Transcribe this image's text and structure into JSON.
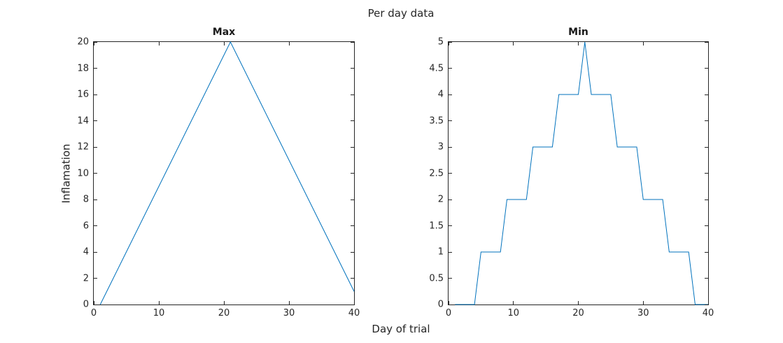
{
  "figure": {
    "suptitle": "Per day data",
    "xlabel": "Day of trial"
  },
  "colors": {
    "line": "#0072BD",
    "axis": "#262626",
    "text": "#262626"
  },
  "chart_data": [
    {
      "type": "line",
      "title": "Max",
      "ylabel": "Inflamation",
      "xlabel": "",
      "legend": null,
      "grid": false,
      "xlim": [
        0,
        40
      ],
      "ylim": [
        0,
        20
      ],
      "xticks": [
        0,
        10,
        20,
        30,
        40
      ],
      "yticks": [
        0,
        2,
        4,
        6,
        8,
        10,
        12,
        14,
        16,
        18,
        20
      ],
      "x": [
        1,
        2,
        3,
        4,
        5,
        6,
        7,
        8,
        9,
        10,
        11,
        12,
        13,
        14,
        15,
        16,
        17,
        18,
        19,
        20,
        21,
        22,
        23,
        24,
        25,
        26,
        27,
        28,
        29,
        30,
        31,
        32,
        33,
        34,
        35,
        36,
        37,
        38,
        39,
        40
      ],
      "y": [
        0,
        1,
        2,
        3,
        4,
        5,
        6,
        7,
        8,
        9,
        10,
        11,
        12,
        13,
        14,
        15,
        16,
        17,
        18,
        19,
        20,
        19,
        18,
        17,
        16,
        15,
        14,
        13,
        12,
        11,
        10,
        9,
        8,
        7,
        6,
        5,
        4,
        3,
        2,
        1
      ]
    },
    {
      "type": "line",
      "title": "Min",
      "ylabel": "",
      "xlabel": "",
      "legend": null,
      "grid": false,
      "xlim": [
        0,
        40
      ],
      "ylim": [
        0,
        5
      ],
      "xticks": [
        0,
        10,
        20,
        30,
        40
      ],
      "yticks": [
        0,
        0.5,
        1,
        1.5,
        2,
        2.5,
        3,
        3.5,
        4,
        4.5,
        5
      ],
      "x": [
        1,
        2,
        3,
        4,
        5,
        6,
        7,
        8,
        9,
        10,
        11,
        12,
        13,
        14,
        15,
        16,
        17,
        18,
        19,
        20,
        21,
        22,
        23,
        24,
        25,
        26,
        27,
        28,
        29,
        30,
        31,
        32,
        33,
        34,
        35,
        36,
        37,
        38,
        39,
        40
      ],
      "y": [
        0,
        0,
        0,
        0,
        1,
        1,
        1,
        1,
        2,
        2,
        2,
        2,
        3,
        3,
        3,
        3,
        4,
        4,
        4,
        4,
        5,
        4,
        4,
        4,
        4,
        3,
        3,
        3,
        3,
        2,
        2,
        2,
        2,
        1,
        1,
        1,
        1,
        0,
        0,
        0
      ]
    }
  ]
}
